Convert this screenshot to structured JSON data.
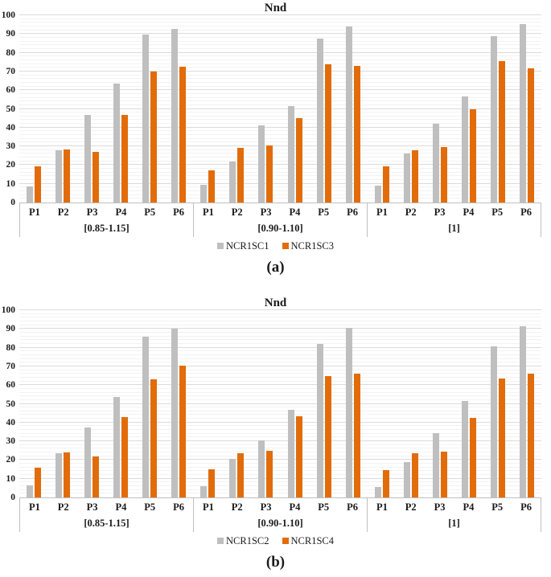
{
  "chart_data": [
    {
      "type": "bar",
      "title": "Nnd",
      "caption": "(a)",
      "group_labels": [
        "[0.85-1.15]",
        "[0.90-1.10]",
        "[1]"
      ],
      "categories": [
        "P1",
        "P2",
        "P3",
        "P4",
        "P5",
        "P6"
      ],
      "series": [
        {
          "name": "NCR1SC1",
          "color": "#bfbfbf",
          "values_by_group": [
            [
              8.5,
              28,
              47,
              63.5,
              89.5,
              92.5
            ],
            [
              9.5,
              22,
              41,
              51.5,
              87.5,
              94
            ],
            [
              9,
              26,
              42,
              56.5,
              89,
              95.5
            ]
          ]
        },
        {
          "name": "NCR1SC3",
          "color": "#e26c0a",
          "values_by_group": [
            [
              19.5,
              28.5,
              27,
              47,
              70,
              72.5
            ],
            [
              17,
              29,
              30.5,
              45,
              74,
              73
            ],
            [
              19.5,
              28,
              29.5,
              50,
              75.5,
              71.5
            ]
          ]
        }
      ],
      "ylim": [
        0,
        100
      ],
      "ytick_step": 10,
      "minor_grid_step": 2,
      "grid": true,
      "legend_position": "bottom"
    },
    {
      "type": "bar",
      "title": "Nnd",
      "caption": "(b)",
      "group_labels": [
        "[0.85-1.15]",
        "[0.90-1.10]",
        "[1]"
      ],
      "categories": [
        "P1",
        "P2",
        "P3",
        "P4",
        "P5",
        "P6"
      ],
      "series": [
        {
          "name": "NCR1SC2",
          "color": "#bfbfbf",
          "values_by_group": [
            [
              6.5,
              23.5,
              37.5,
              53.5,
              86,
              90
            ],
            [
              6,
              20.5,
              30.5,
              47,
              82,
              90.5
            ],
            [
              5.5,
              19,
              34.5,
              51.5,
              80.5,
              91.5
            ]
          ]
        },
        {
          "name": "NCR1SC4",
          "color": "#e26c0a",
          "values_by_group": [
            [
              16,
              24,
              22,
              43,
              63,
              70.5
            ],
            [
              15,
              23.5,
              25,
              43.5,
              65,
              66
            ],
            [
              14.5,
              23.5,
              24.5,
              42.5,
              63.5,
              66
            ]
          ]
        }
      ],
      "ylim": [
        0,
        100
      ],
      "ytick_step": 10,
      "minor_grid_step": 2,
      "grid": true,
      "legend_position": "bottom"
    }
  ]
}
